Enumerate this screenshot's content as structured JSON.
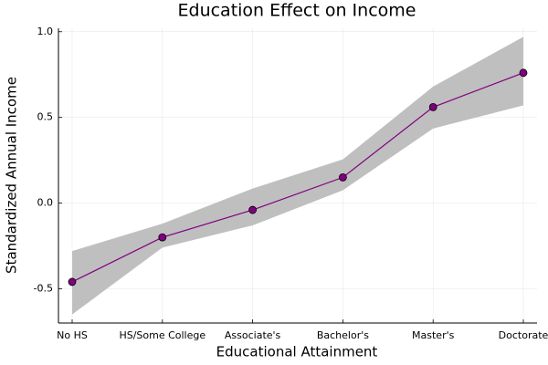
{
  "chart_data": {
    "type": "line",
    "title": "Education Effect on Income",
    "x_label": "Educational Attainment",
    "y_label": "Standardized Annual Income",
    "categories": [
      "No HS",
      "HS/Some College",
      "Associate's",
      "Bachelor's",
      "Master's",
      "Doctorate"
    ],
    "values": [
      -0.46,
      -0.2,
      -0.04,
      0.15,
      0.56,
      0.76
    ],
    "lower": [
      -0.65,
      -0.26,
      -0.13,
      0.075,
      0.435,
      0.57
    ],
    "upper": [
      -0.28,
      -0.12,
      0.085,
      0.255,
      0.68,
      0.97
    ],
    "color": "#800080",
    "band_color": "#bfbfbf",
    "ylim": [
      -0.7,
      1.02
    ],
    "yticks": [
      -0.5,
      {
        "value": 0,
        "label": "0.0"
      },
      0.5,
      {
        "value": 1,
        "label": "1.0"
      }
    ],
    "grid": true
  }
}
